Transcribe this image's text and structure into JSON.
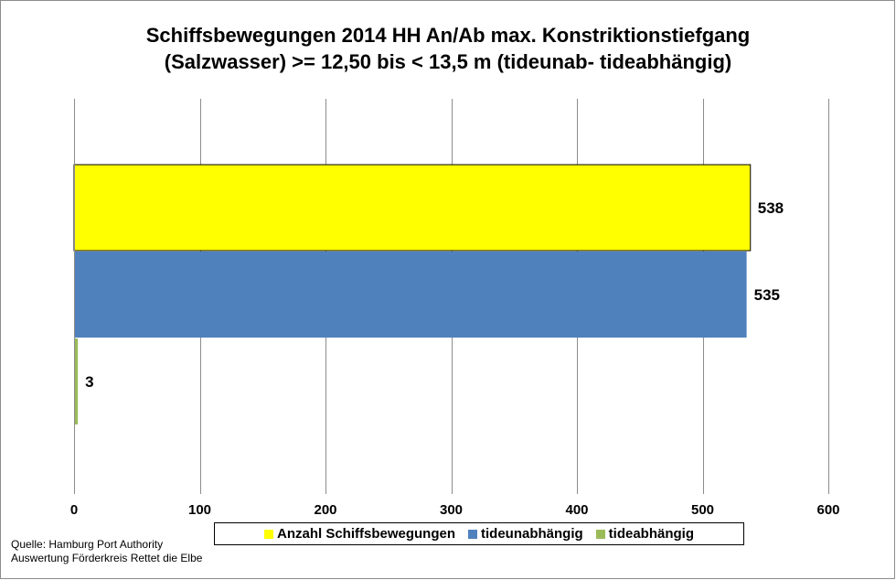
{
  "chart_data": {
    "type": "bar",
    "orientation": "horizontal",
    "title_lines": [
      "Schiffsbewegungen 2014 HH An/Ab max. Konstriktionstiefgang",
      "(Salzwasser) >= 12,50 bis < 13,5 m (tideunab- tideabhängig)"
    ],
    "series": [
      {
        "name": "Anzahl Schiffsbewegungen",
        "value": 538,
        "color": "#ffff00"
      },
      {
        "name": "tideunabhängig",
        "value": 535,
        "color": "#4f81bd"
      },
      {
        "name": "tideabhängig",
        "value": 3,
        "color": "#9bbb59"
      }
    ],
    "x_ticks": [
      0,
      100,
      200,
      300,
      400,
      500,
      600
    ],
    "xlim": [
      0,
      600
    ],
    "grid": "vertical",
    "legend_position": "bottom"
  },
  "footer": {
    "source_lines": [
      "Quelle: Hamburg Port Authority",
      "Auswertung Förderkreis Rettet die Elbe"
    ]
  }
}
